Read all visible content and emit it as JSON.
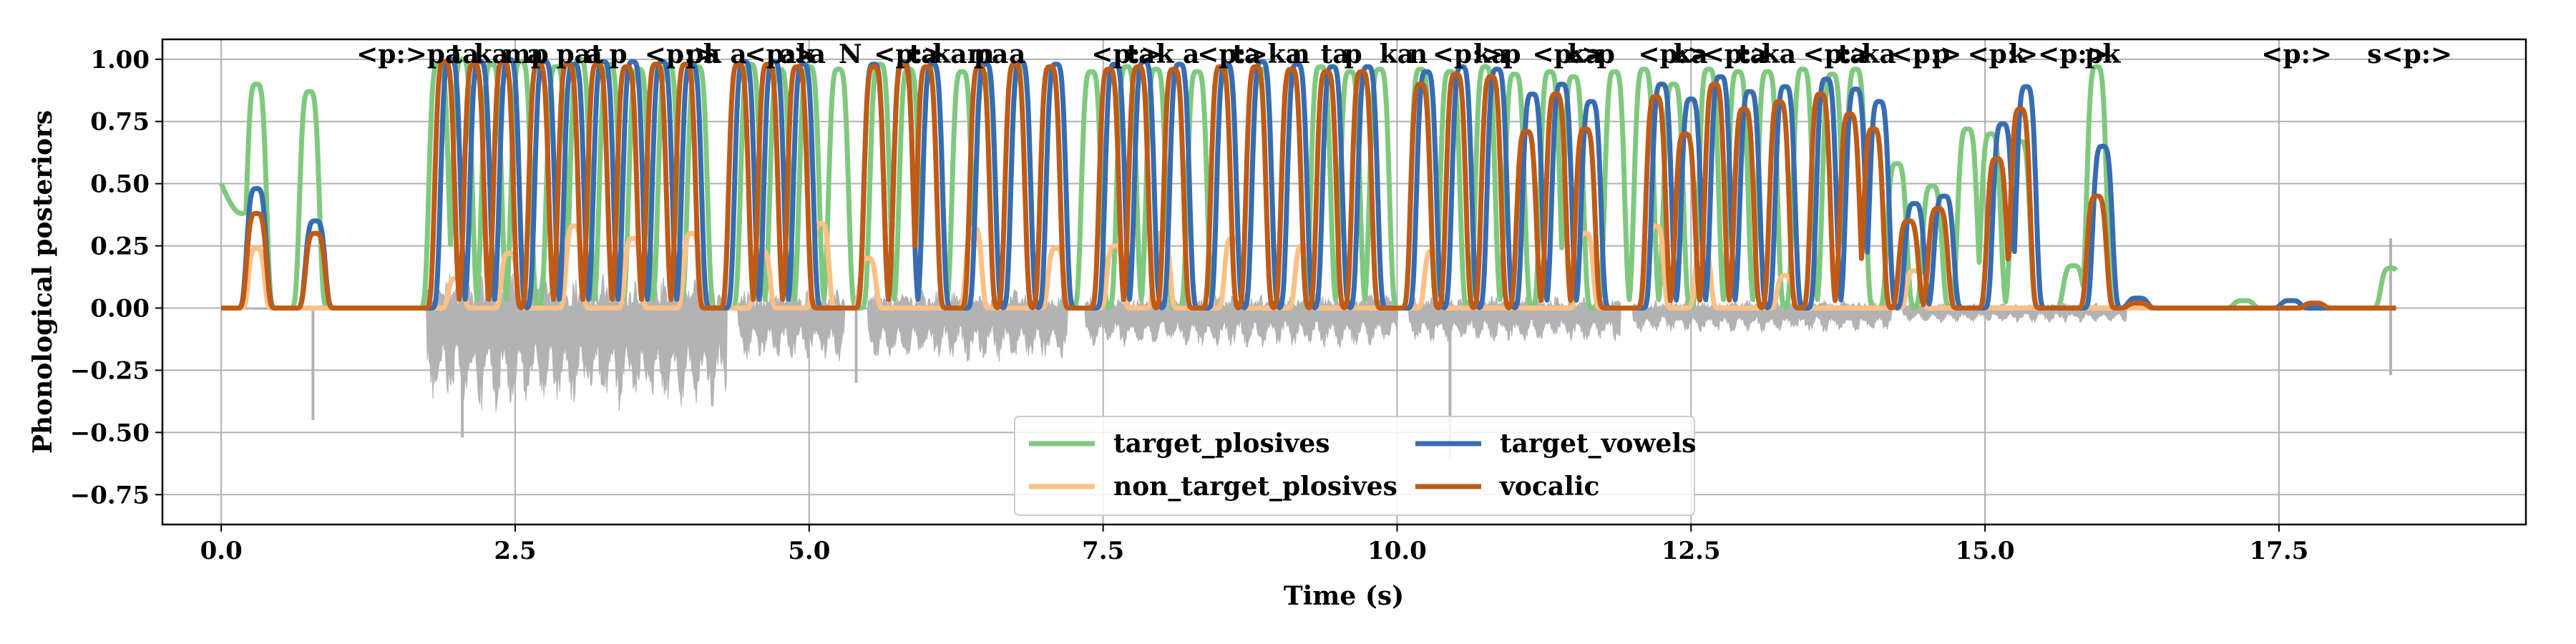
{
  "chart_data": {
    "type": "line",
    "title": "",
    "xlabel": "Time (s)",
    "ylabel": "Phonological posteriors",
    "xlim": [
      -0.5,
      19.6
    ],
    "ylim": [
      -0.87,
      1.08
    ],
    "grid": true,
    "legend_placement": "lower-center",
    "legend_columns": 2,
    "x_ticks": [
      {
        "value": 0.0,
        "label": "0.0"
      },
      {
        "value": 2.5,
        "label": "2.5"
      },
      {
        "value": 5.0,
        "label": "5.0"
      },
      {
        "value": 7.5,
        "label": "7.5"
      },
      {
        "value": 10.0,
        "label": "10.0"
      },
      {
        "value": 12.5,
        "label": "12.5"
      },
      {
        "value": 15.0,
        "label": "15.0"
      },
      {
        "value": 17.5,
        "label": "17.5"
      }
    ],
    "y_ticks": [
      {
        "value": 1.0,
        "label": "1.00"
      },
      {
        "value": 0.75,
        "label": "0.75"
      },
      {
        "value": 0.5,
        "label": "0.50"
      },
      {
        "value": 0.25,
        "label": "0.25"
      },
      {
        "value": 0.0,
        "label": "0.00"
      },
      {
        "value": -0.25,
        "label": "−0.25"
      },
      {
        "value": -0.5,
        "label": "−0.50"
      },
      {
        "value": -0.75,
        "label": "−0.75"
      }
    ],
    "waveform": {
      "color": "#b3b3b3",
      "x_range": [
        0.0,
        18.5
      ]
    },
    "series": [
      {
        "name": "target_plosives",
        "color": "#7fc97f",
        "peaks": [
          {
            "t": 0.3,
            "h": 0.9
          },
          {
            "t": 0.75,
            "h": 0.87
          },
          {
            "t": 1.85,
            "h": 0.98
          },
          {
            "t": 2.05,
            "h": 1.0
          },
          {
            "t": 2.3,
            "h": 0.98
          },
          {
            "t": 2.55,
            "h": 0.99
          },
          {
            "t": 2.85,
            "h": 0.97
          },
          {
            "t": 3.05,
            "h": 1.0
          },
          {
            "t": 3.3,
            "h": 0.98
          },
          {
            "t": 3.55,
            "h": 0.96
          },
          {
            "t": 3.8,
            "h": 0.98
          },
          {
            "t": 4.05,
            "h": 0.97
          },
          {
            "t": 4.5,
            "h": 0.98
          },
          {
            "t": 4.75,
            "h": 0.96
          },
          {
            "t": 5.0,
            "h": 0.97
          },
          {
            "t": 5.25,
            "h": 0.96
          },
          {
            "t": 5.6,
            "h": 0.98
          },
          {
            "t": 5.85,
            "h": 0.96
          },
          {
            "t": 6.05,
            "h": 0.97
          },
          {
            "t": 6.3,
            "h": 0.95
          },
          {
            "t": 6.5,
            "h": 0.94
          },
          {
            "t": 6.8,
            "h": 0.97
          },
          {
            "t": 7.05,
            "h": 0.96
          },
          {
            "t": 7.4,
            "h": 0.95
          },
          {
            "t": 7.7,
            "h": 0.97
          },
          {
            "t": 7.95,
            "h": 0.96
          },
          {
            "t": 8.3,
            "h": 0.95
          },
          {
            "t": 8.55,
            "h": 0.96
          },
          {
            "t": 8.85,
            "h": 0.96
          },
          {
            "t": 9.1,
            "h": 0.95
          },
          {
            "t": 9.35,
            "h": 0.97
          },
          {
            "t": 9.6,
            "h": 0.95
          },
          {
            "t": 9.85,
            "h": 0.96
          },
          {
            "t": 10.2,
            "h": 0.96
          },
          {
            "t": 10.45,
            "h": 0.95
          },
          {
            "t": 10.75,
            "h": 0.97
          },
          {
            "t": 11.0,
            "h": 0.94
          },
          {
            "t": 11.3,
            "h": 0.95
          },
          {
            "t": 11.5,
            "h": 0.93
          },
          {
            "t": 11.85,
            "h": 0.95
          },
          {
            "t": 12.1,
            "h": 0.96
          },
          {
            "t": 12.35,
            "h": 0.9
          },
          {
            "t": 12.65,
            "h": 0.96
          },
          {
            "t": 12.9,
            "h": 0.95
          },
          {
            "t": 13.15,
            "h": 0.95
          },
          {
            "t": 13.45,
            "h": 0.96
          },
          {
            "t": 13.7,
            "h": 0.94
          },
          {
            "t": 13.9,
            "h": 0.96
          },
          {
            "t": 14.25,
            "h": 0.58
          },
          {
            "t": 14.55,
            "h": 0.49
          },
          {
            "t": 14.85,
            "h": 0.72
          },
          {
            "t": 15.05,
            "h": 0.7
          },
          {
            "t": 15.3,
            "h": 0.67
          },
          {
            "t": 15.75,
            "h": 0.17
          },
          {
            "t": 15.95,
            "h": 0.97
          },
          {
            "t": 17.2,
            "h": 0.03
          },
          {
            "t": 18.45,
            "h": 0.16
          }
        ]
      },
      {
        "name": "non_target_plosives",
        "color": "#fdc086",
        "peaks": [
          {
            "t": 0.3,
            "h": 0.24
          },
          {
            "t": 2.0,
            "h": 0.12
          },
          {
            "t": 2.45,
            "h": 0.22
          },
          {
            "t": 3.0,
            "h": 0.33
          },
          {
            "t": 3.5,
            "h": 0.28
          },
          {
            "t": 4.0,
            "h": 0.3
          },
          {
            "t": 4.6,
            "h": 0.23
          },
          {
            "t": 5.1,
            "h": 0.34
          },
          {
            "t": 5.5,
            "h": 0.2
          },
          {
            "t": 6.4,
            "h": 0.32
          },
          {
            "t": 7.1,
            "h": 0.24
          },
          {
            "t": 7.6,
            "h": 0.25
          },
          {
            "t": 8.0,
            "h": 0.3
          },
          {
            "t": 8.6,
            "h": 0.28
          },
          {
            "t": 9.2,
            "h": 0.25
          },
          {
            "t": 10.3,
            "h": 0.23
          },
          {
            "t": 11.6,
            "h": 0.3
          },
          {
            "t": 12.2,
            "h": 0.33
          },
          {
            "t": 12.6,
            "h": 0.24
          },
          {
            "t": 13.3,
            "h": 0.13
          },
          {
            "t": 14.4,
            "h": 0.15
          }
        ]
      },
      {
        "name": "target_vowels",
        "color": "#386cb0",
        "peaks": [
          {
            "t": 0.3,
            "h": 0.48
          },
          {
            "t": 0.8,
            "h": 0.35
          },
          {
            "t": 1.95,
            "h": 1.0
          },
          {
            "t": 2.2,
            "h": 0.99
          },
          {
            "t": 2.45,
            "h": 1.0
          },
          {
            "t": 2.75,
            "h": 0.99
          },
          {
            "t": 3.0,
            "h": 0.98
          },
          {
            "t": 3.25,
            "h": 0.99
          },
          {
            "t": 3.5,
            "h": 0.99
          },
          {
            "t": 3.75,
            "h": 0.99
          },
          {
            "t": 4.0,
            "h": 0.98
          },
          {
            "t": 4.45,
            "h": 0.99
          },
          {
            "t": 4.7,
            "h": 0.99
          },
          {
            "t": 4.95,
            "h": 0.98
          },
          {
            "t": 5.55,
            "h": 0.98
          },
          {
            "t": 5.8,
            "h": 0.99
          },
          {
            "t": 6.05,
            "h": 0.98
          },
          {
            "t": 6.5,
            "h": 0.98
          },
          {
            "t": 6.8,
            "h": 0.99
          },
          {
            "t": 7.1,
            "h": 0.98
          },
          {
            "t": 7.6,
            "h": 0.98
          },
          {
            "t": 7.85,
            "h": 0.99
          },
          {
            "t": 8.15,
            "h": 0.98
          },
          {
            "t": 8.55,
            "h": 0.98
          },
          {
            "t": 8.85,
            "h": 0.99
          },
          {
            "t": 9.15,
            "h": 0.98
          },
          {
            "t": 9.45,
            "h": 0.97
          },
          {
            "t": 9.75,
            "h": 0.97
          },
          {
            "t": 10.25,
            "h": 0.95
          },
          {
            "t": 10.55,
            "h": 0.97
          },
          {
            "t": 10.85,
            "h": 0.96
          },
          {
            "t": 11.15,
            "h": 0.86
          },
          {
            "t": 11.4,
            "h": 0.9
          },
          {
            "t": 11.65,
            "h": 0.83
          },
          {
            "t": 12.25,
            "h": 0.9
          },
          {
            "t": 12.5,
            "h": 0.84
          },
          {
            "t": 12.75,
            "h": 0.93
          },
          {
            "t": 13.0,
            "h": 0.87
          },
          {
            "t": 13.3,
            "h": 0.89
          },
          {
            "t": 13.65,
            "h": 0.92
          },
          {
            "t": 13.9,
            "h": 0.88
          },
          {
            "t": 14.1,
            "h": 0.83
          },
          {
            "t": 14.4,
            "h": 0.42
          },
          {
            "t": 14.65,
            "h": 0.45
          },
          {
            "t": 15.15,
            "h": 0.74
          },
          {
            "t": 15.35,
            "h": 0.89
          },
          {
            "t": 16.0,
            "h": 0.65
          },
          {
            "t": 16.3,
            "h": 0.04
          },
          {
            "t": 17.6,
            "h": 0.03
          }
        ]
      },
      {
        "name": "vocalic",
        "color": "#bf5b17",
        "peaks": [
          {
            "t": 0.3,
            "h": 0.38
          },
          {
            "t": 0.8,
            "h": 0.3
          },
          {
            "t": 1.9,
            "h": 0.99
          },
          {
            "t": 2.15,
            "h": 0.98
          },
          {
            "t": 2.4,
            "h": 0.99
          },
          {
            "t": 2.7,
            "h": 0.98
          },
          {
            "t": 2.95,
            "h": 0.98
          },
          {
            "t": 3.2,
            "h": 0.98
          },
          {
            "t": 3.45,
            "h": 0.97
          },
          {
            "t": 3.7,
            "h": 0.98
          },
          {
            "t": 3.95,
            "h": 0.98
          },
          {
            "t": 4.4,
            "h": 0.98
          },
          {
            "t": 4.65,
            "h": 0.98
          },
          {
            "t": 4.9,
            "h": 0.97
          },
          {
            "t": 5.55,
            "h": 0.97
          },
          {
            "t": 5.8,
            "h": 0.98
          },
          {
            "t": 6.0,
            "h": 0.97
          },
          {
            "t": 6.45,
            "h": 0.97
          },
          {
            "t": 6.75,
            "h": 0.98
          },
          {
            "t": 7.05,
            "h": 0.97
          },
          {
            "t": 7.55,
            "h": 0.96
          },
          {
            "t": 7.8,
            "h": 0.97
          },
          {
            "t": 8.1,
            "h": 0.96
          },
          {
            "t": 8.5,
            "h": 0.97
          },
          {
            "t": 8.8,
            "h": 0.97
          },
          {
            "t": 9.1,
            "h": 0.96
          },
          {
            "t": 9.4,
            "h": 0.95
          },
          {
            "t": 9.7,
            "h": 0.95
          },
          {
            "t": 10.2,
            "h": 0.9
          },
          {
            "t": 10.5,
            "h": 0.94
          },
          {
            "t": 10.8,
            "h": 0.93
          },
          {
            "t": 11.1,
            "h": 0.71
          },
          {
            "t": 11.35,
            "h": 0.86
          },
          {
            "t": 11.6,
            "h": 0.72
          },
          {
            "t": 12.2,
            "h": 0.85
          },
          {
            "t": 12.45,
            "h": 0.7
          },
          {
            "t": 12.7,
            "h": 0.9
          },
          {
            "t": 12.95,
            "h": 0.8
          },
          {
            "t": 13.25,
            "h": 0.83
          },
          {
            "t": 13.6,
            "h": 0.86
          },
          {
            "t": 13.85,
            "h": 0.78
          },
          {
            "t": 14.05,
            "h": 0.72
          },
          {
            "t": 14.35,
            "h": 0.35
          },
          {
            "t": 14.6,
            "h": 0.4
          },
          {
            "t": 15.1,
            "h": 0.6
          },
          {
            "t": 15.3,
            "h": 0.8
          },
          {
            "t": 15.95,
            "h": 0.45
          },
          {
            "t": 16.3,
            "h": 0.02
          },
          {
            "t": 17.8,
            "h": 0.02
          }
        ]
      }
    ],
    "annotations": [
      {
        "x": 1.15,
        "text": "<p:>"
      },
      {
        "x": 1.75,
        "text": "pa"
      },
      {
        "x": 1.95,
        "text": "ta"
      },
      {
        "x": 2.15,
        "text": "ka"
      },
      {
        "x": 2.4,
        "text": "mp"
      },
      {
        "x": 2.6,
        "text": "a"
      },
      {
        "x": 2.85,
        "text": "pat"
      },
      {
        "x": 3.1,
        "text": "a"
      },
      {
        "x": 3.3,
        "text": "p"
      },
      {
        "x": 3.6,
        "text": "<p:>"
      },
      {
        "x": 3.95,
        "text": "pa"
      },
      {
        "x": 4.1,
        "text": "k a"
      },
      {
        "x": 4.45,
        "text": "<p:>"
      },
      {
        "x": 4.75,
        "text": "ak"
      },
      {
        "x": 5.0,
        "text": "a"
      },
      {
        "x": 5.25,
        "text": "N"
      },
      {
        "x": 5.55,
        "text": "<p:>"
      },
      {
        "x": 5.85,
        "text": "ta"
      },
      {
        "x": 6.05,
        "text": "kam"
      },
      {
        "x": 6.4,
        "text": "pa"
      },
      {
        "x": 6.7,
        "text": "a"
      },
      {
        "x": 7.4,
        "text": "<p:>"
      },
      {
        "x": 7.7,
        "text": "ta"
      },
      {
        "x": 7.95,
        "text": "k a"
      },
      {
        "x": 8.3,
        "text": "<p:>"
      },
      {
        "x": 8.6,
        "text": "ta"
      },
      {
        "x": 8.9,
        "text": "ka"
      },
      {
        "x": 9.1,
        "text": "n"
      },
      {
        "x": 9.35,
        "text": "ta"
      },
      {
        "x": 9.55,
        "text": "p"
      },
      {
        "x": 9.85,
        "text": "ka"
      },
      {
        "x": 10.1,
        "text": "n"
      },
      {
        "x": 10.3,
        "text": "<p:>"
      },
      {
        "x": 10.65,
        "text": "ka"
      },
      {
        "x": 10.9,
        "text": "p"
      },
      {
        "x": 11.15,
        "text": "<p:>"
      },
      {
        "x": 11.45,
        "text": "ka"
      },
      {
        "x": 11.7,
        "text": "p"
      },
      {
        "x": 12.05,
        "text": "<p:>"
      },
      {
        "x": 12.35,
        "text": "ka"
      },
      {
        "x": 12.6,
        "text": "<p:>"
      },
      {
        "x": 12.9,
        "text": "ta"
      },
      {
        "x": 13.1,
        "text": "ka"
      },
      {
        "x": 13.45,
        "text": "<p:>"
      },
      {
        "x": 13.75,
        "text": "ta"
      },
      {
        "x": 13.95,
        "text": "ka"
      },
      {
        "x": 14.2,
        "text": "<p:>"
      },
      {
        "x": 14.55,
        "text": "p"
      },
      {
        "x": 14.85,
        "text": "<p:>"
      },
      {
        "x": 15.2,
        "text": "k"
      },
      {
        "x": 15.45,
        "text": "<p:>"
      },
      {
        "x": 15.85,
        "text": "p"
      },
      {
        "x": 16.0,
        "text": "k"
      },
      {
        "x": 17.35,
        "text": "<p:>"
      },
      {
        "x": 18.25,
        "text": "s<p:>"
      }
    ],
    "legend": [
      {
        "name": "target_plosives",
        "color": "#7fc97f",
        "col": 0,
        "row": 0
      },
      {
        "name": "non_target_plosives",
        "color": "#fdc086",
        "col": 0,
        "row": 1
      },
      {
        "name": "target_vowels",
        "color": "#386cb0",
        "col": 1,
        "row": 0
      },
      {
        "name": "vocalic",
        "color": "#bf5b17",
        "col": 1,
        "row": 1
      }
    ]
  }
}
